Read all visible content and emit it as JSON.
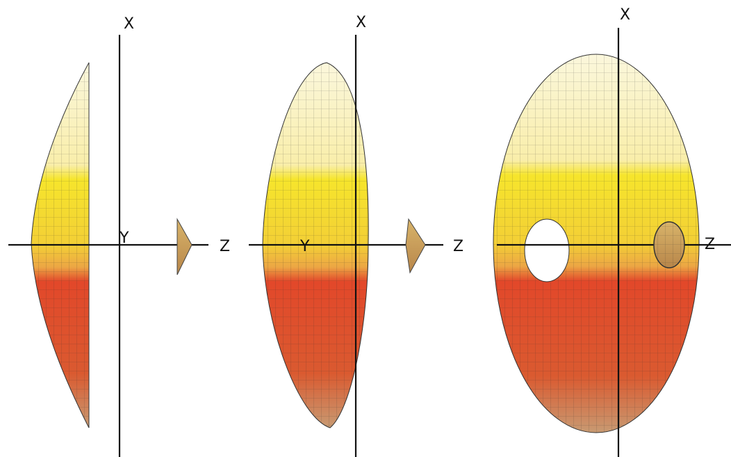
{
  "panels": [
    {
      "labels": {
        "x": "X",
        "y": "Y",
        "z": "Z"
      }
    },
    {
      "labels": {
        "x": "X",
        "y": "Y",
        "z": "Z"
      }
    },
    {
      "labels": {
        "x": "X",
        "z": "Z"
      }
    }
  ]
}
